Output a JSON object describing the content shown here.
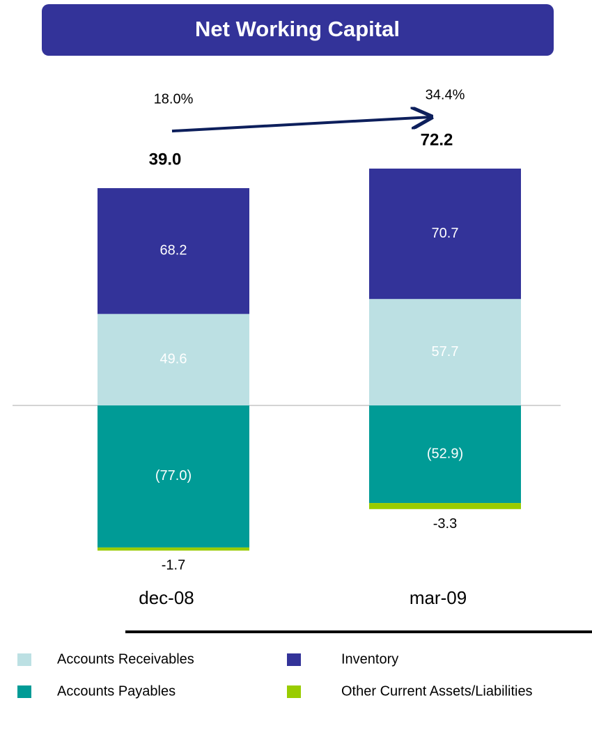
{
  "chart_data": {
    "type": "stacked_bar",
    "title": "Net Working Capital",
    "categories": [
      "dec-08",
      "mar-09"
    ],
    "series": [
      {
        "name": "Accounts Receivables",
        "color": "#bce0e3",
        "values": [
          49.6,
          57.7
        ]
      },
      {
        "name": "Inventory",
        "color": "#333399",
        "values": [
          68.2,
          70.7
        ]
      },
      {
        "name": "Accounts Payables",
        "color": "#009b96",
        "values": [
          -77.0,
          -52.9
        ],
        "value_labels": [
          "(77.0)",
          "(52.9)"
        ]
      },
      {
        "name": "Other Current Assets/Liabilities",
        "color": "#99cc00",
        "values": [
          -1.7,
          -3.3
        ]
      }
    ],
    "totals": {
      "values": [
        39.0,
        72.2
      ],
      "value_labels": [
        "39.0",
        "72.2"
      ]
    },
    "growth": {
      "values": [
        18.0,
        34.4
      ],
      "value_labels": [
        "18.0%",
        "34.4%"
      ]
    }
  }
}
